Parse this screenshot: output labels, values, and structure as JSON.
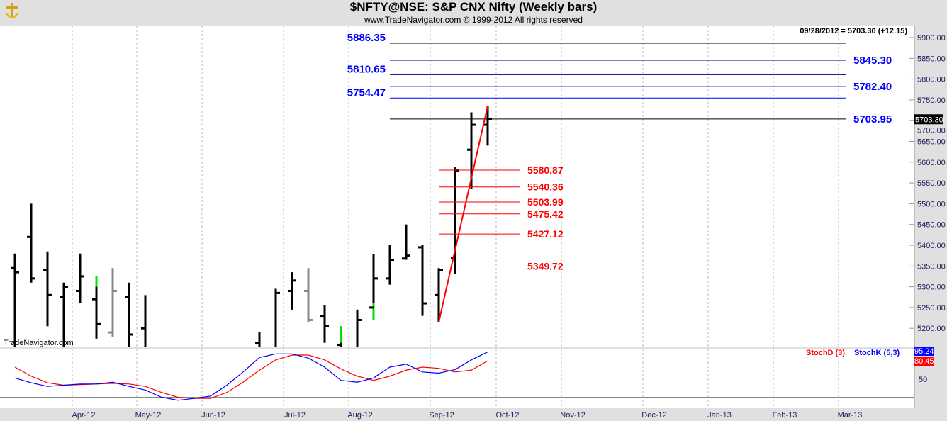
{
  "header": {
    "title": "$NFTY@NSE:  S&P CNX Nifty  (Weekly bars)",
    "subtitle": "www.TradeNavigator.com © 1999-2012 All rights reserved",
    "last_quote": "09/28/2012 = 5703.30 (+12.15)",
    "watermark": "TradeNavigator.com"
  },
  "chart_data": {
    "type": "ohlc",
    "ylim": [
      5160,
      5920
    ],
    "y_ticks": [
      "5900.00",
      "5850.00",
      "5800.00",
      "5750.00",
      "5700.00",
      "5650.00",
      "5600.00",
      "5550.00",
      "5500.00",
      "5450.00",
      "5400.00",
      "5350.00",
      "5300.00",
      "5250.00",
      "5200.00"
    ],
    "y_tick_values": [
      5900,
      5850,
      5800,
      5750,
      5700,
      5650,
      5600,
      5550,
      5500,
      5450,
      5400,
      5350,
      5300,
      5250,
      5200
    ],
    "x_ticks": [
      "Apr-12",
      "May-12",
      "Jun-12",
      "Jul-12",
      "Aug-12",
      "Sep-12",
      "Oct-12",
      "Nov-12",
      "Dec-12",
      "Jan-13",
      "Feb-13",
      "Mar-13"
    ],
    "last_price_label": "5703.30",
    "bars": [
      {
        "o": 5345,
        "h": 5380,
        "l": 5150,
        "c": 5335,
        "color": "#000000"
      },
      {
        "o": 5420,
        "h": 5500,
        "l": 5310,
        "c": 5320,
        "color": "#000000"
      },
      {
        "o": 5340,
        "h": 5385,
        "l": 5205,
        "c": 5280,
        "color": "#000000"
      },
      {
        "o": 5275,
        "h": 5310,
        "l": 5150,
        "c": 5300,
        "color": "#000000"
      },
      {
        "o": 5290,
        "h": 5380,
        "l": 5260,
        "c": 5325,
        "color": "#000000"
      },
      {
        "o": 5270,
        "h": 5325,
        "l": 5175,
        "c": 5210,
        "color": "#000000",
        "green": [
          5300,
          5325
        ]
      },
      {
        "o": 5190,
        "h": 5345,
        "l": 5180,
        "c": 5290,
        "color": "#888888"
      },
      {
        "o": 5275,
        "h": 5310,
        "l": 5150,
        "c": 5185,
        "color": "#000000"
      },
      {
        "o": 5200,
        "h": 5280,
        "l": 5130,
        "c": 5130,
        "color": "#000000"
      },
      null,
      null,
      null,
      null,
      null,
      null,
      {
        "o": 5165,
        "h": 5190,
        "l": 5140,
        "c": 5140,
        "color": "#000000"
      },
      {
        "o": 5150,
        "h": 5295,
        "l": 5140,
        "c": 5285,
        "color": "#000000"
      },
      {
        "o": 5290,
        "h": 5335,
        "l": 5245,
        "c": 5315,
        "color": "#000000"
      },
      {
        "o": 5290,
        "h": 5345,
        "l": 5215,
        "c": 5220,
        "color": "#888888"
      },
      {
        "o": 5230,
        "h": 5255,
        "l": 5165,
        "c": 5205,
        "color": "#000000"
      },
      {
        "o": 5160,
        "h": 5205,
        "l": 5150,
        "c": 5150,
        "color": "#000000",
        "green": [
          5165,
          5205
        ]
      },
      {
        "o": 5150,
        "h": 5245,
        "l": 5140,
        "c": 5220,
        "color": "#000000"
      },
      {
        "o": 5250,
        "h": 5378,
        "l": 5220,
        "c": 5320,
        "color": "#000000",
        "green": [
          5220,
          5260
        ]
      },
      {
        "o": 5320,
        "h": 5400,
        "l": 5305,
        "c": 5365,
        "color": "#000000"
      },
      {
        "o": 5368,
        "h": 5450,
        "l": 5365,
        "c": 5375,
        "color": "#000000"
      },
      {
        "o": 5395,
        "h": 5400,
        "l": 5230,
        "c": 5260,
        "color": "#000000"
      },
      {
        "o": 5280,
        "h": 5345,
        "l": 5215,
        "c": 5340,
        "color": "#000000"
      },
      {
        "o": 5370,
        "h": 5588,
        "l": 5330,
        "c": 5580,
        "color": "#000000"
      },
      {
        "o": 5630,
        "h": 5720,
        "l": 5535,
        "c": 5690,
        "color": "#000000"
      },
      {
        "o": 5690,
        "h": 5735,
        "l": 5640,
        "c": 5703.3,
        "color": "#000000"
      }
    ],
    "trendline": {
      "from": 5215,
      "to": 5735,
      "color": "#ff0000"
    },
    "levels_blue": [
      {
        "label": "5886.35",
        "value": 5886.35,
        "line": "#000000",
        "side": "left"
      },
      {
        "label": "5845.30",
        "value": 5845.3,
        "line": "#000080",
        "side": "right"
      },
      {
        "label": "5810.65",
        "value": 5810.65,
        "line": "#000080",
        "side": "left"
      },
      {
        "label": "5782.40",
        "value": 5782.4,
        "line": "#0000ff",
        "side": "right"
      },
      {
        "label": "5754.47",
        "value": 5754.47,
        "line": "#0000ff",
        "side": "left"
      },
      {
        "label": "5703.95",
        "value": 5703.95,
        "line": "#000000",
        "side": "right"
      }
    ],
    "levels_red": [
      {
        "label": "5580.87",
        "value": 5580.87
      },
      {
        "label": "5540.36",
        "value": 5540.36
      },
      {
        "label": "5503.99",
        "value": 5503.99
      },
      {
        "label": "5475.42",
        "value": 5475.42
      },
      {
        "label": "5427.12",
        "value": 5427.12
      },
      {
        "label": "5349.72",
        "value": 5349.72
      }
    ],
    "stochastic": {
      "ylim": [
        0,
        100
      ],
      "ref_lines": [
        80,
        20
      ],
      "tick": "50",
      "d_label": "StochD (3)",
      "k_label": "StochK (5,3)",
      "k_value": "95.24",
      "d_value": "80.45",
      "k_color": "#0000ff",
      "d_color": "#ff0000",
      "k": [
        52,
        44,
        38,
        40,
        42,
        42,
        45,
        38,
        32,
        20,
        15,
        18,
        22,
        40,
        62,
        86,
        92,
        92,
        85,
        70,
        48,
        45,
        52,
        70,
        75,
        62,
        60,
        66,
        82,
        95.24
      ],
      "d": [
        70,
        55,
        44,
        40,
        41,
        42,
        43,
        42,
        38,
        28,
        20,
        18,
        18,
        28,
        45,
        65,
        82,
        90,
        90,
        82,
        67,
        55,
        48,
        55,
        65,
        70,
        68,
        62,
        65,
        80.45
      ]
    }
  }
}
